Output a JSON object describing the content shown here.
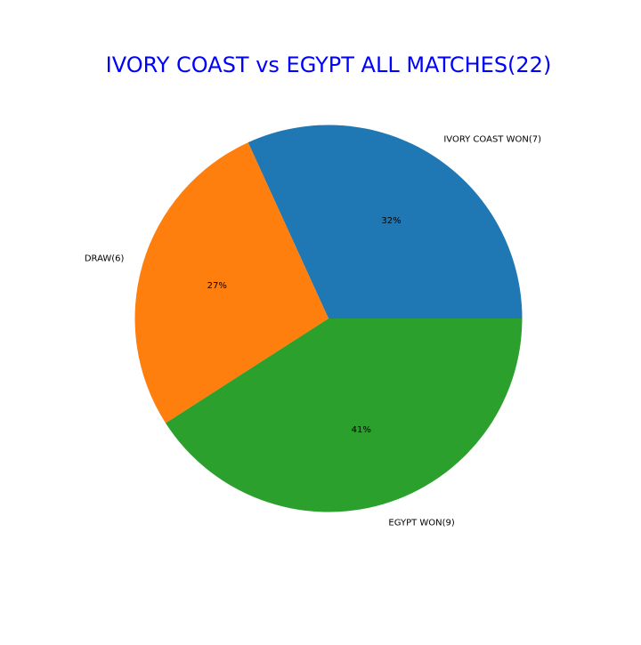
{
  "chart_data": {
    "type": "pie",
    "title": "IVORY COAST vs EGYPT ALL MATCHES(22)",
    "title_color": "#0000ff",
    "slices": [
      {
        "label": "IVORY COAST WON(7)",
        "value": 7,
        "percent_label": "32%",
        "color": "#1f77b4"
      },
      {
        "label": "DRAW(6)",
        "value": 6,
        "percent_label": "27%",
        "color": "#ff7f0e"
      },
      {
        "label": "EGYPT WON(9)",
        "value": 9,
        "percent_label": "41%",
        "color": "#2ca02c"
      }
    ],
    "start_angle_deg": 0,
    "direction": "counterclockwise",
    "legend": "none"
  }
}
